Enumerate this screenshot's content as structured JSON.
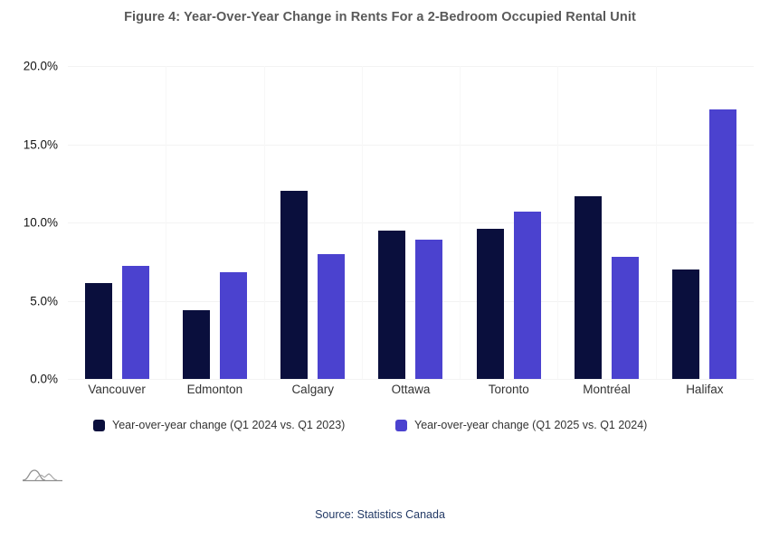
{
  "title": "Figure 4: Year-Over-Year Change in Rents For a 2-Bedroom Occupied Rental Unit",
  "source": "Source: Statistics Canada",
  "colors": {
    "series1": "#0a0f3d",
    "series2": "#4b42cf",
    "title_text": "#595959",
    "axis_text": "#141414",
    "source_text": "#233a66",
    "gridline": "#f3f3f3"
  },
  "chart_data": {
    "type": "bar",
    "title": "Figure 4: Year-Over-Year Change in Rents For a 2-Bedroom Occupied Rental Unit",
    "categories": [
      "Vancouver",
      "Edmonton",
      "Calgary",
      "Ottawa",
      "Toronto",
      "Montréal",
      "Halifax"
    ],
    "series": [
      {
        "name": "Year-over-year change (Q1 2024 vs. Q1 2023)",
        "color": "#0a0f3d",
        "values": [
          6.1,
          4.4,
          12.0,
          9.5,
          9.6,
          11.7,
          7.0
        ]
      },
      {
        "name": "Year-over-year change (Q1 2025 vs. Q1 2024)",
        "color": "#4b42cf",
        "values": [
          7.2,
          6.8,
          8.0,
          8.9,
          10.7,
          7.8,
          17.2
        ]
      }
    ],
    "xlabel": "",
    "ylabel": "",
    "ylim": [
      0,
      20
    ],
    "ytick_step": 5,
    "yticks": [
      "20.0%",
      "15.0%",
      "10.0%",
      "5.0%",
      "0.0%"
    ],
    "grid": true,
    "legend_position": "bottom"
  },
  "legend": {
    "items": [
      {
        "label": "Year-over-year change (Q1 2024 vs. Q1 2023)",
        "color": "#0a0f3d"
      },
      {
        "label": "Year-over-year change (Q1 2025 vs. Q1 2024)",
        "color": "#4b42cf"
      }
    ]
  },
  "logo_icon": "curves-logo-icon"
}
